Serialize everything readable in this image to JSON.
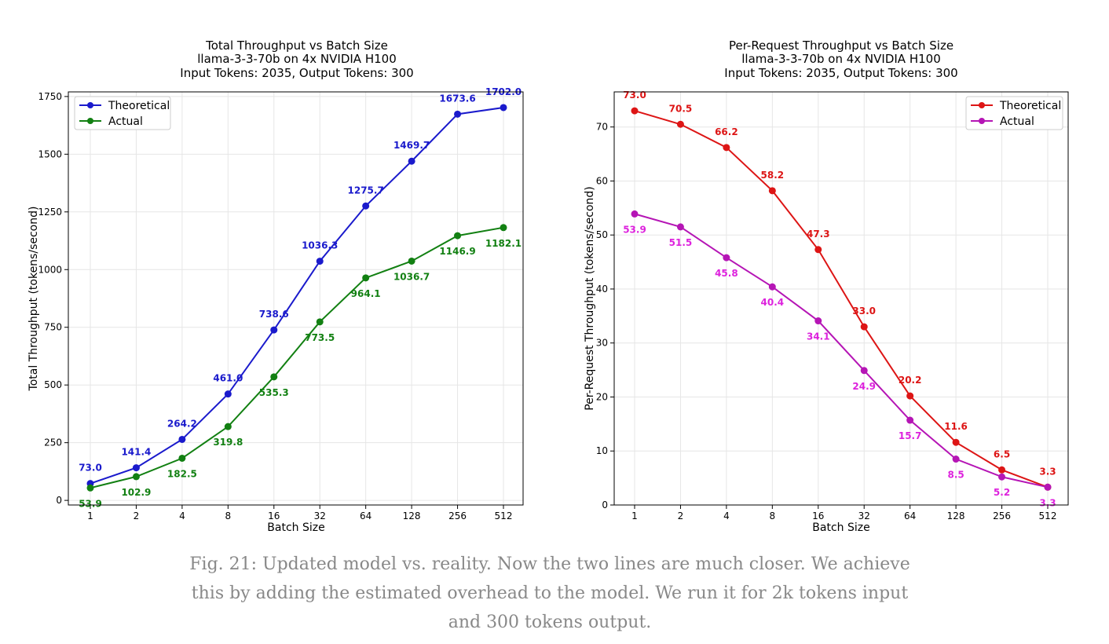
{
  "chart_data": [
    {
      "type": "line",
      "title": "Total Throughput vs Batch Size",
      "subtitle1": "llama-3-3-70b on 4x NVIDIA H100",
      "subtitle2": "Input Tokens: 2035, Output Tokens: 300",
      "xlabel": "Batch Size",
      "ylabel": "Total Throughput (tokens/second)",
      "x": [
        "1",
        "2",
        "4",
        "8",
        "16",
        "32",
        "64",
        "128",
        "256",
        "512"
      ],
      "ylim": [
        -20,
        1770
      ],
      "yticks": [
        0,
        250,
        500,
        750,
        1000,
        1250,
        1500,
        1750
      ],
      "grid": true,
      "legend_position": "upper-left",
      "series": [
        {
          "name": "Theoretical",
          "color": "#1a1acc",
          "values": [
            73.0,
            141.4,
            264.2,
            461.0,
            738.6,
            1036.3,
            1275.7,
            1469.7,
            1673.6,
            1702.0
          ],
          "labels": [
            "73.0",
            "141.4",
            "264.2",
            "461.0",
            "738.6",
            "1036.3",
            "1275.7",
            "1469.7",
            "1673.6",
            "1702.0"
          ],
          "label_position": "above"
        },
        {
          "name": "Actual",
          "color": "#128012",
          "values": [
            53.9,
            102.9,
            182.5,
            319.8,
            535.3,
            773.5,
            964.1,
            1036.7,
            1146.9,
            1182.1
          ],
          "labels": [
            "53.9",
            "102.9",
            "182.5",
            "319.8",
            "535.3",
            "773.5",
            "964.1",
            "1036.7",
            "1146.9",
            "1182.1"
          ],
          "label_position": "below"
        }
      ]
    },
    {
      "type": "line",
      "title": "Per-Request Throughput vs Batch Size",
      "subtitle1": "llama-3-3-70b on 4x NVIDIA H100",
      "subtitle2": "Input Tokens: 2035, Output Tokens: 300",
      "xlabel": "Batch Size",
      "ylabel": "Per-Request Throughput (tokens/second)",
      "x": [
        "1",
        "2",
        "4",
        "8",
        "16",
        "32",
        "64",
        "128",
        "256",
        "512"
      ],
      "ylim": [
        0,
        76.5
      ],
      "yticks": [
        0,
        10,
        20,
        30,
        40,
        50,
        60,
        70
      ],
      "grid": true,
      "legend_position": "upper-right",
      "series": [
        {
          "name": "Theoretical",
          "color": "#dd1515",
          "values": [
            73.0,
            70.5,
            66.2,
            58.2,
            47.3,
            33.0,
            20.2,
            11.6,
            6.5,
            3.3
          ],
          "labels": [
            "73.0",
            "70.5",
            "66.2",
            "58.2",
            "47.3",
            "33.0",
            "20.2",
            "11.6",
            "6.5",
            "3.3"
          ],
          "label_position": "above"
        },
        {
          "name": "Actual",
          "color": "#b515b5",
          "label_color": "#dd22dd",
          "values": [
            53.9,
            51.5,
            45.8,
            40.4,
            34.1,
            24.9,
            15.7,
            8.5,
            5.2,
            3.3
          ],
          "labels": [
            "53.9",
            "51.5",
            "45.8",
            "40.4",
            "34.1",
            "24.9",
            "15.7",
            "8.5",
            "5.2",
            "3.3"
          ],
          "label_position": "below"
        }
      ]
    }
  ],
  "caption": {
    "line1": "Fig. 21: Updated model vs. reality. Now the two lines are much closer. We achieve",
    "line2": "this by adding the estimated overhead to the model. We run it for 2k tokens input",
    "line3": "and 300 tokens output."
  }
}
